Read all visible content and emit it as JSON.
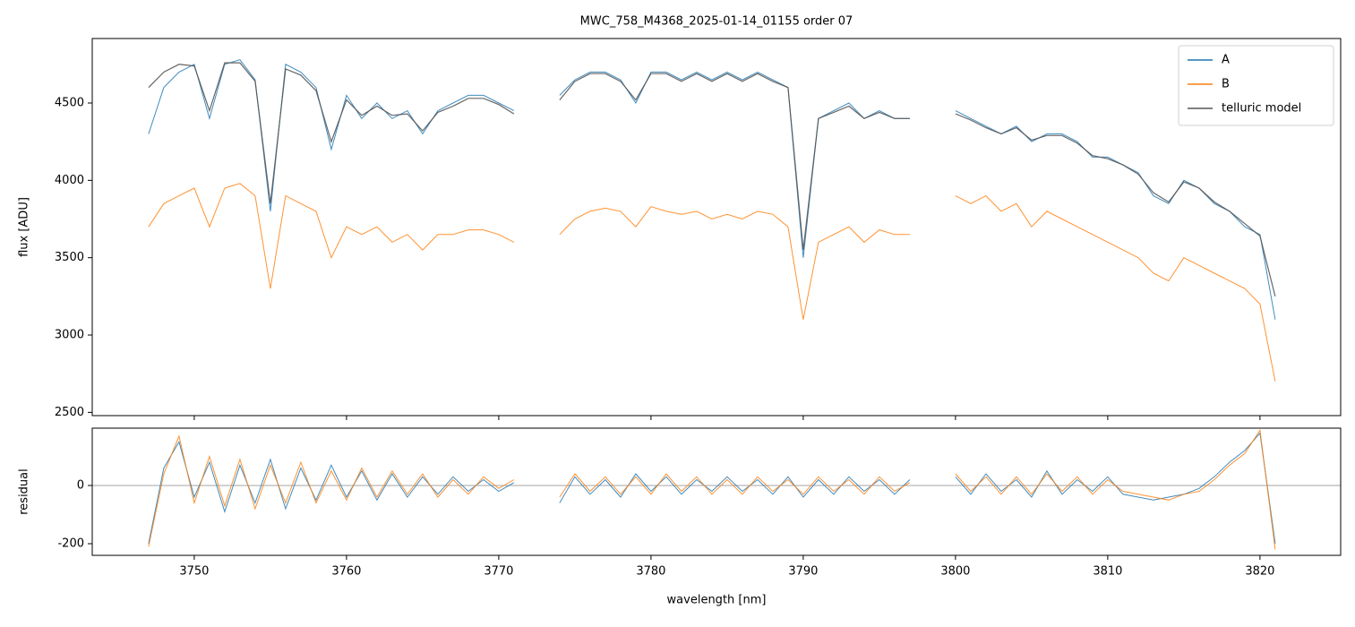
{
  "chart_data": [
    {
      "type": "line",
      "title": "MWC_758_M4368_2025-01-14_01155  order 07",
      "ylabel": "flux [ADU]",
      "x": [
        3747,
        3748,
        3749,
        3750,
        3751,
        3752,
        3753,
        3754,
        3755,
        3756,
        3757,
        3758,
        3759,
        3760,
        3761,
        3762,
        3763,
        3764,
        3765,
        3766,
        3767,
        3768,
        3769,
        3770,
        3771,
        3772,
        3773,
        3774,
        3775,
        3776,
        3777,
        3778,
        3779,
        3780,
        3781,
        3782,
        3783,
        3784,
        3785,
        3786,
        3787,
        3788,
        3789,
        3790,
        3791,
        3792,
        3793,
        3794,
        3795,
        3796,
        3797,
        3798,
        3799,
        3800,
        3801,
        3802,
        3803,
        3804,
        3805,
        3806,
        3807,
        3808,
        3809,
        3810,
        3811,
        3812,
        3813,
        3814,
        3815,
        3816,
        3817,
        3818,
        3819,
        3820,
        3821
      ],
      "series": [
        {
          "name": "A",
          "color": "#1f77b4",
          "values": [
            4300,
            4600,
            4700,
            4750,
            4400,
            4750,
            4780,
            4650,
            3800,
            4750,
            4700,
            4600,
            4200,
            4550,
            4400,
            4500,
            4400,
            4450,
            4300,
            4450,
            4500,
            4550,
            4550,
            4500,
            4450,
            null,
            null,
            4550,
            4650,
            4700,
            4700,
            4650,
            4500,
            4700,
            4700,
            4650,
            4700,
            4650,
            4700,
            4650,
            4700,
            4650,
            4600,
            3500,
            4400,
            4450,
            4500,
            4400,
            4450,
            4400,
            4400,
            null,
            null,
            4450,
            4400,
            4350,
            4300,
            4350,
            4250,
            4300,
            4300,
            4250,
            4150,
            4150,
            4100,
            4050,
            3900,
            3850,
            4000,
            3950,
            3850,
            3800,
            3700,
            3650,
            3100
          ]
        },
        {
          "name": "B",
          "color": "#ff7f0e",
          "values": [
            3700,
            3850,
            3900,
            3950,
            3700,
            3950,
            3980,
            3900,
            3300,
            3900,
            3850,
            3800,
            3500,
            3700,
            3650,
            3700,
            3600,
            3650,
            3550,
            3650,
            3650,
            3680,
            3680,
            3650,
            3600,
            null,
            null,
            3650,
            3750,
            3800,
            3820,
            3800,
            3700,
            3830,
            3800,
            3780,
            3800,
            3750,
            3780,
            3750,
            3800,
            3780,
            3700,
            3100,
            3600,
            3650,
            3700,
            3600,
            3680,
            3650,
            3650,
            null,
            null,
            3900,
            3850,
            3900,
            3800,
            3850,
            3700,
            3800,
            3750,
            3700,
            3650,
            3600,
            3550,
            3500,
            3400,
            3350,
            3500,
            3450,
            3400,
            3350,
            3300,
            3200,
            2700
          ]
        },
        {
          "name": "telluric model",
          "color": "#555555",
          "values": [
            4600,
            4700,
            4750,
            4740,
            4450,
            4760,
            4760,
            4640,
            3850,
            4720,
            4680,
            4580,
            4250,
            4520,
            4420,
            4480,
            4420,
            4430,
            4320,
            4440,
            4480,
            4530,
            4530,
            4490,
            4430,
            null,
            null,
            4520,
            4640,
            4690,
            4690,
            4640,
            4520,
            4690,
            4690,
            4640,
            4690,
            4640,
            4690,
            4640,
            4690,
            4640,
            4600,
            3550,
            4400,
            4440,
            4480,
            4400,
            4440,
            4400,
            4400,
            null,
            null,
            4430,
            4390,
            4340,
            4300,
            4340,
            4260,
            4290,
            4290,
            4240,
            4160,
            4140,
            4100,
            4040,
            3920,
            3860,
            3990,
            3950,
            3860,
            3800,
            3720,
            3640,
            3250
          ]
        }
      ],
      "xlim": [
        3743.3,
        3825.3
      ],
      "xticks": [
        3750,
        3760,
        3770,
        3780,
        3790,
        3800,
        3810,
        3820
      ],
      "ylim": [
        2479,
        4917
      ],
      "yticks": [
        2500,
        3000,
        3500,
        4000,
        4500
      ],
      "legend": "upper right"
    },
    {
      "type": "line",
      "xlabel": "wavelength [nm]",
      "ylabel": "residual",
      "x": [
        3747,
        3748,
        3749,
        3750,
        3751,
        3752,
        3753,
        3754,
        3755,
        3756,
        3757,
        3758,
        3759,
        3760,
        3761,
        3762,
        3763,
        3764,
        3765,
        3766,
        3767,
        3768,
        3769,
        3770,
        3771,
        3772,
        3773,
        3774,
        3775,
        3776,
        3777,
        3778,
        3779,
        3780,
        3781,
        3782,
        3783,
        3784,
        3785,
        3786,
        3787,
        3788,
        3789,
        3790,
        3791,
        3792,
        3793,
        3794,
        3795,
        3796,
        3797,
        3798,
        3799,
        3800,
        3801,
        3802,
        3803,
        3804,
        3805,
        3806,
        3807,
        3808,
        3809,
        3810,
        3811,
        3812,
        3813,
        3814,
        3815,
        3816,
        3817,
        3818,
        3819,
        3820,
        3821
      ],
      "series": [
        {
          "name": "A",
          "color": "#1f77b4",
          "values": [
            -200,
            60,
            150,
            -40,
            80,
            -90,
            70,
            -60,
            90,
            -80,
            60,
            -50,
            70,
            -40,
            50,
            -50,
            40,
            -40,
            30,
            -30,
            30,
            -20,
            20,
            -20,
            10,
            null,
            null,
            -60,
            30,
            -30,
            20,
            -40,
            40,
            -20,
            30,
            -30,
            20,
            -20,
            30,
            -20,
            20,
            -30,
            30,
            -40,
            20,
            -30,
            30,
            -20,
            20,
            -30,
            20,
            null,
            null,
            30,
            -30,
            40,
            -20,
            20,
            -40,
            50,
            -30,
            20,
            -20,
            30,
            -30,
            -40,
            -50,
            -40,
            -30,
            -10,
            30,
            80,
            120,
            180,
            -200
          ]
        },
        {
          "name": "B",
          "color": "#ff7f0e",
          "values": [
            -210,
            40,
            170,
            -60,
            100,
            -70,
            90,
            -80,
            70,
            -60,
            80,
            -60,
            50,
            -50,
            60,
            -40,
            50,
            -30,
            40,
            -40,
            20,
            -30,
            30,
            -10,
            20,
            null,
            null,
            -40,
            40,
            -20,
            30,
            -30,
            30,
            -30,
            40,
            -20,
            30,
            -30,
            20,
            -30,
            30,
            -20,
            20,
            -30,
            30,
            -20,
            20,
            -30,
            30,
            -20,
            10,
            null,
            null,
            40,
            -20,
            30,
            -30,
            30,
            -30,
            40,
            -20,
            30,
            -30,
            20,
            -20,
            -30,
            -40,
            -50,
            -30,
            -20,
            20,
            70,
            110,
            190,
            -220
          ]
        }
      ],
      "xlim": [
        3743.3,
        3825.3
      ],
      "xticks": [
        3750,
        3760,
        3770,
        3780,
        3790,
        3800,
        3810,
        3820
      ],
      "ylim": [
        -240,
        197
      ],
      "yticks": [
        -200,
        0
      ],
      "zero_line": true
    }
  ]
}
